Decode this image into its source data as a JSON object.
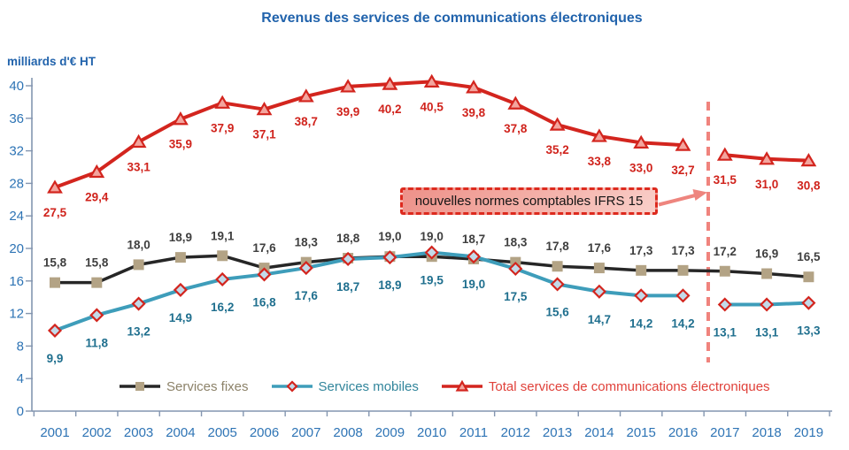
{
  "chart_data": {
    "type": "line",
    "title": "Revenus des services de communications électroniques",
    "ylabel": "milliards d'€ HT",
    "xlabel": "",
    "x": [
      2001,
      2002,
      2003,
      2004,
      2005,
      2006,
      2007,
      2008,
      2009,
      2010,
      2011,
      2012,
      2013,
      2014,
      2015,
      2016,
      2017,
      2018,
      2019
    ],
    "ylim": [
      0,
      40
    ],
    "y_ticks": [
      0,
      4,
      8,
      12,
      16,
      20,
      24,
      28,
      32,
      36,
      40
    ],
    "grid": false,
    "legend_position": "bottom",
    "decimal_separator": ",",
    "annotation": "nouvelles normes comptables IFRS 15",
    "series": [
      {
        "id": "fixes",
        "name": "Services fixes",
        "values": [
          15.8,
          15.8,
          18.0,
          18.9,
          19.1,
          17.6,
          18.3,
          18.8,
          19.0,
          19.0,
          18.7,
          18.3,
          17.8,
          17.6,
          17.3,
          17.3,
          17.2,
          16.9,
          16.5
        ],
        "line_color": "#262626",
        "marker": "square",
        "marker_fill": "#B3A385",
        "marker_stroke": "none",
        "label_color": "#3F3F3F",
        "legend_text_color": "#8C8269",
        "gap_after_index": null
      },
      {
        "id": "mobiles",
        "name": "Services mobiles",
        "values": [
          9.9,
          11.8,
          13.2,
          14.9,
          16.2,
          16.8,
          17.6,
          18.7,
          18.9,
          19.5,
          19.0,
          17.5,
          15.6,
          14.7,
          14.2,
          14.2,
          13.1,
          13.1,
          13.3
        ],
        "line_color": "#3E9DBA",
        "marker": "diamond",
        "marker_fill": "#C3DAE9",
        "marker_stroke": "#D3251E",
        "label_color": "#1F6F8E",
        "legend_text_color": "#31859B",
        "gap_after_index": 15
      },
      {
        "id": "total",
        "name": "Total services de communications électroniques",
        "values": [
          27.5,
          29.4,
          33.1,
          35.9,
          37.9,
          37.1,
          38.7,
          39.9,
          40.2,
          40.5,
          39.8,
          37.8,
          35.2,
          33.8,
          33.0,
          32.7,
          31.5,
          31.0,
          30.8
        ],
        "line_color": "#D3251E",
        "marker": "triangle-up",
        "marker_fill": "#F3A59E",
        "marker_stroke": "#D3251E",
        "label_color": "#D0231C",
        "legend_text_color": "#E0413A",
        "gap_after_index": 15
      }
    ],
    "colors": {
      "axis": "#8496B0",
      "tick_labels": "#2E74B5",
      "title": "#2163AC",
      "break_line": "#F0837D",
      "annotation_border": "#DD2A1E",
      "annotation_fill_start": "#ED9189",
      "annotation_fill_end": "#F9CFC9",
      "arrow": "#EE857E"
    }
  }
}
